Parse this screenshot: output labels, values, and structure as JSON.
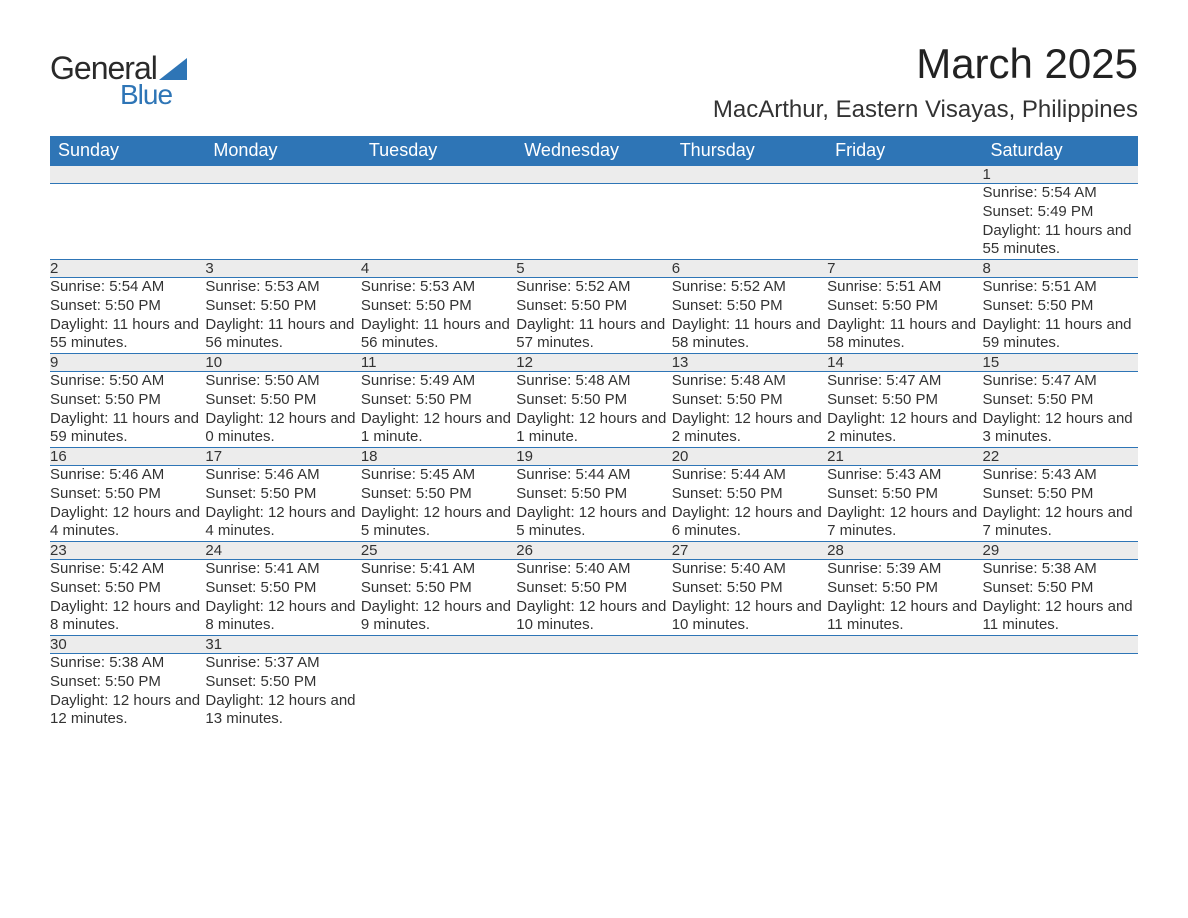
{
  "logo": {
    "text_top": "General",
    "text_bottom": "Blue",
    "triangle_color": "#2e75b6"
  },
  "title": "March 2025",
  "location": "MacArthur, Eastern Visayas, Philippines",
  "colors": {
    "header_bg": "#2e75b6",
    "header_text": "#ffffff",
    "daynum_bg": "#ececec",
    "row_border": "#2e75b6",
    "text": "#333333",
    "background": "#ffffff"
  },
  "day_headers": [
    "Sunday",
    "Monday",
    "Tuesday",
    "Wednesday",
    "Thursday",
    "Friday",
    "Saturday"
  ],
  "weeks": [
    {
      "nums": [
        "",
        "",
        "",
        "",
        "",
        "",
        "1"
      ],
      "cells": [
        "",
        "",
        "",
        "",
        "",
        "",
        "Sunrise: 5:54 AM\nSunset: 5:49 PM\nDaylight: 11 hours and 55 minutes."
      ]
    },
    {
      "nums": [
        "2",
        "3",
        "4",
        "5",
        "6",
        "7",
        "8"
      ],
      "cells": [
        "Sunrise: 5:54 AM\nSunset: 5:50 PM\nDaylight: 11 hours and 55 minutes.",
        "Sunrise: 5:53 AM\nSunset: 5:50 PM\nDaylight: 11 hours and 56 minutes.",
        "Sunrise: 5:53 AM\nSunset: 5:50 PM\nDaylight: 11 hours and 56 minutes.",
        "Sunrise: 5:52 AM\nSunset: 5:50 PM\nDaylight: 11 hours and 57 minutes.",
        "Sunrise: 5:52 AM\nSunset: 5:50 PM\nDaylight: 11 hours and 58 minutes.",
        "Sunrise: 5:51 AM\nSunset: 5:50 PM\nDaylight: 11 hours and 58 minutes.",
        "Sunrise: 5:51 AM\nSunset: 5:50 PM\nDaylight: 11 hours and 59 minutes."
      ]
    },
    {
      "nums": [
        "9",
        "10",
        "11",
        "12",
        "13",
        "14",
        "15"
      ],
      "cells": [
        "Sunrise: 5:50 AM\nSunset: 5:50 PM\nDaylight: 11 hours and 59 minutes.",
        "Sunrise: 5:50 AM\nSunset: 5:50 PM\nDaylight: 12 hours and 0 minutes.",
        "Sunrise: 5:49 AM\nSunset: 5:50 PM\nDaylight: 12 hours and 1 minute.",
        "Sunrise: 5:48 AM\nSunset: 5:50 PM\nDaylight: 12 hours and 1 minute.",
        "Sunrise: 5:48 AM\nSunset: 5:50 PM\nDaylight: 12 hours and 2 minutes.",
        "Sunrise: 5:47 AM\nSunset: 5:50 PM\nDaylight: 12 hours and 2 minutes.",
        "Sunrise: 5:47 AM\nSunset: 5:50 PM\nDaylight: 12 hours and 3 minutes."
      ]
    },
    {
      "nums": [
        "16",
        "17",
        "18",
        "19",
        "20",
        "21",
        "22"
      ],
      "cells": [
        "Sunrise: 5:46 AM\nSunset: 5:50 PM\nDaylight: 12 hours and 4 minutes.",
        "Sunrise: 5:46 AM\nSunset: 5:50 PM\nDaylight: 12 hours and 4 minutes.",
        "Sunrise: 5:45 AM\nSunset: 5:50 PM\nDaylight: 12 hours and 5 minutes.",
        "Sunrise: 5:44 AM\nSunset: 5:50 PM\nDaylight: 12 hours and 5 minutes.",
        "Sunrise: 5:44 AM\nSunset: 5:50 PM\nDaylight: 12 hours and 6 minutes.",
        "Sunrise: 5:43 AM\nSunset: 5:50 PM\nDaylight: 12 hours and 7 minutes.",
        "Sunrise: 5:43 AM\nSunset: 5:50 PM\nDaylight: 12 hours and 7 minutes."
      ]
    },
    {
      "nums": [
        "23",
        "24",
        "25",
        "26",
        "27",
        "28",
        "29"
      ],
      "cells": [
        "Sunrise: 5:42 AM\nSunset: 5:50 PM\nDaylight: 12 hours and 8 minutes.",
        "Sunrise: 5:41 AM\nSunset: 5:50 PM\nDaylight: 12 hours and 8 minutes.",
        "Sunrise: 5:41 AM\nSunset: 5:50 PM\nDaylight: 12 hours and 9 minutes.",
        "Sunrise: 5:40 AM\nSunset: 5:50 PM\nDaylight: 12 hours and 10 minutes.",
        "Sunrise: 5:40 AM\nSunset: 5:50 PM\nDaylight: 12 hours and 10 minutes.",
        "Sunrise: 5:39 AM\nSunset: 5:50 PM\nDaylight: 12 hours and 11 minutes.",
        "Sunrise: 5:38 AM\nSunset: 5:50 PM\nDaylight: 12 hours and 11 minutes."
      ]
    },
    {
      "nums": [
        "30",
        "31",
        "",
        "",
        "",
        "",
        ""
      ],
      "cells": [
        "Sunrise: 5:38 AM\nSunset: 5:50 PM\nDaylight: 12 hours and 12 minutes.",
        "Sunrise: 5:37 AM\nSunset: 5:50 PM\nDaylight: 12 hours and 13 minutes.",
        "",
        "",
        "",
        "",
        ""
      ]
    }
  ]
}
